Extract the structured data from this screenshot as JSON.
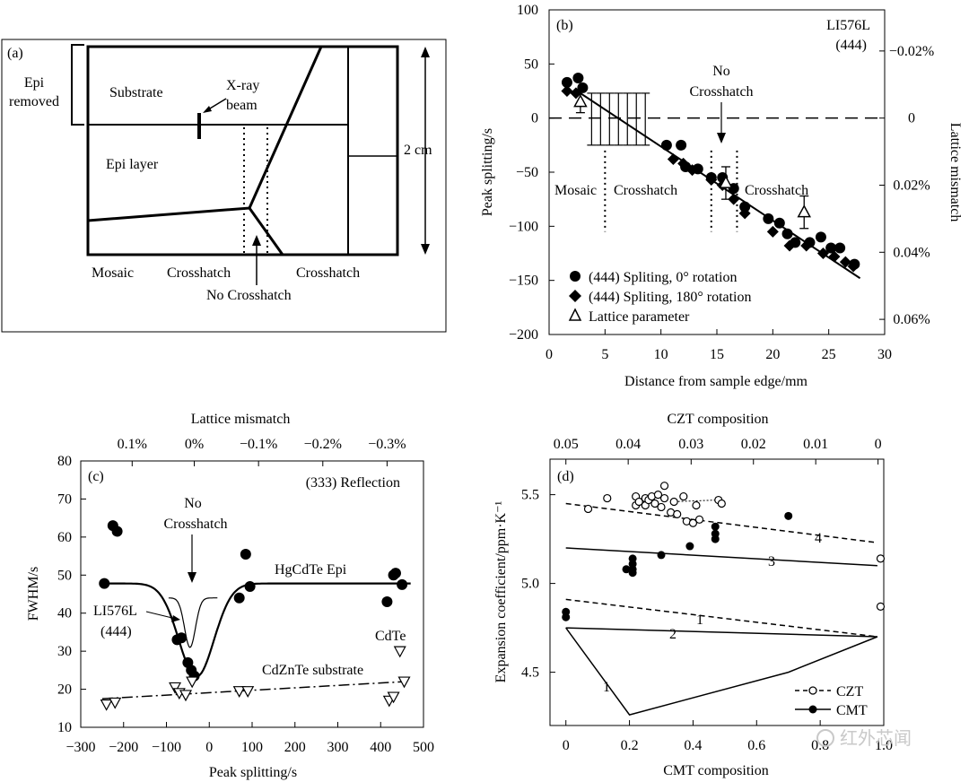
{
  "watermark": "红外芯闻",
  "panels": {
    "a": {
      "label": "(a)",
      "labels": {
        "epi_removed_1": "Epi",
        "epi_removed_2": "removed",
        "substrate": "Substrate",
        "beam_1": "X-ray",
        "beam_2": "beam",
        "epi_layer": "Epi layer",
        "size": "2 cm",
        "mosaic": "Mosaic",
        "crosshatch_left": "Crosshatch",
        "crosshatch_right": "Crosshatch",
        "no_crosshatch": "No Crosshatch"
      }
    }
  },
  "chart_data": [
    {
      "id": "b",
      "type": "scatter",
      "panel_label": "(b)",
      "sample": "LI576L",
      "reflection": "(444)",
      "xlabel": "Distance from sample edge/mm",
      "ylabel": "Peak splitting/s",
      "y2label": "Lattice mismatch",
      "xlim": [
        0,
        30
      ],
      "ylim": [
        -200,
        100
      ],
      "xticks": [
        "0",
        "5",
        "10",
        "15",
        "20",
        "25",
        "30"
      ],
      "yticks": [
        "100",
        "50",
        "0",
        "−50",
        "−100",
        "−150",
        "−200"
      ],
      "y2ticks": [
        {
          "label": "−0.02%",
          "y": 62
        },
        {
          "label": "0",
          "y": 0
        },
        {
          "label": "0.02%",
          "y": -62
        },
        {
          "label": "0.04%",
          "y": -124
        },
        {
          "label": "0.06%",
          "y": -186
        }
      ],
      "annotations": {
        "mosaic": "Mosaic",
        "crosshatch_1": "Crosshatch",
        "crosshatch_2": "Crosshatch",
        "no_1": "No",
        "no_2": "Crosshatch"
      },
      "legend_position": "bottom-left",
      "series": [
        {
          "name": "(444) Spliting, 0° rotation",
          "marker": "circle",
          "x": [
            1.6,
            2.6,
            3.0,
            10.5,
            11.8,
            12.2,
            13.3,
            14.5,
            15.5,
            16.5,
            17.5,
            19.6,
            20.6,
            21.3,
            22.0,
            23.3,
            24.3,
            25.2,
            26.0,
            27.3
          ],
          "y": [
            33,
            37,
            28,
            -25,
            -25,
            -45,
            -47,
            -55,
            -55,
            -65,
            -82,
            -93,
            -97,
            -107,
            -115,
            -115,
            -110,
            -120,
            -120,
            -135
          ]
        },
        {
          "name": "(444) Spliting, 180° rotation",
          "marker": "diamond",
          "x": [
            1.6,
            2.4,
            11.1,
            12.0,
            12.8,
            14.5,
            15.5,
            16.5,
            17.5,
            20.0,
            21.5,
            23.0,
            24.5,
            25.5,
            26.5,
            27.2
          ],
          "y": [
            25,
            23,
            -38,
            -42,
            -48,
            -57,
            -62,
            -75,
            -88,
            -105,
            -118,
            -118,
            -125,
            -128,
            -133,
            -137
          ]
        },
        {
          "name": "Lattice parameter",
          "marker": "triangle-open",
          "x": [
            2.8,
            15.8,
            22.8
          ],
          "y": [
            15,
            -60,
            -87
          ],
          "err": [
            10,
            15,
            15
          ]
        }
      ],
      "reference_line": {
        "y": 0,
        "style": "dashed"
      },
      "fit_line": {
        "x": [
          2.5,
          27.8
        ],
        "y": [
          25,
          -148
        ]
      },
      "range_bars": {
        "x": [
          3.8,
          4.6,
          5.4,
          6.2,
          7.0,
          7.8,
          8.6
        ],
        "y_low": -25,
        "y_high": 23
      },
      "boundaries": [
        {
          "x": 5.0,
          "y_low": -105,
          "y_high": -30
        },
        {
          "x": 14.5,
          "y_low": -105,
          "y_high": -30
        },
        {
          "x": 16.8,
          "y_low": -105,
          "y_high": -30
        }
      ]
    },
    {
      "id": "c",
      "type": "scatter",
      "panel_label": "(c)",
      "reflection": "(333) Reflection",
      "xlabel": "Peak splitting/s",
      "ylabel": "FWHM/s",
      "x2label": "Lattice mismatch",
      "xlim": [
        -300,
        500
      ],
      "ylim": [
        10,
        80
      ],
      "xticks": [
        "−300",
        "−200",
        "−100",
        "0",
        "100",
        "200",
        "300",
        "400",
        "500"
      ],
      "yticks": [
        "80",
        "70",
        "60",
        "50",
        "40",
        "30",
        "20",
        "10"
      ],
      "x2ticks": [
        {
          "label": "0.1%",
          "x": -180
        },
        {
          "label": "0%",
          "x": -35
        },
        {
          "label": "−0.1%",
          "x": 115
        },
        {
          "label": "−0.2%",
          "x": 265
        },
        {
          "label": "−0.3%",
          "x": 415
        }
      ],
      "annotations": {
        "no_1": "No",
        "no_2": "Crosshatch",
        "epi": "HgCdTe Epi",
        "sample_1": "LI576L",
        "sample_2": "(444)",
        "substrate": "CdZnTe substrate",
        "cdte": "CdTe"
      },
      "series": [
        {
          "name": "HgCdTe Epi",
          "marker": "circle",
          "x": [
            -245,
            -225,
            -215,
            -75,
            -65,
            -50,
            -42,
            -35,
            70,
            85,
            95,
            415,
            430,
            435,
            450
          ],
          "y": [
            47.8,
            63,
            61.5,
            33,
            33.5,
            27,
            25,
            23.5,
            44,
            55.5,
            47,
            43,
            50,
            50.5,
            47.5
          ]
        },
        {
          "name": "CdZnTe substrate",
          "marker": "triangle-down-open",
          "x": [
            -240,
            -220,
            -80,
            -70,
            -55,
            -40,
            70,
            90,
            420,
            430,
            445,
            455
          ],
          "y": [
            16,
            16.5,
            20.5,
            19,
            18.5,
            22,
            19.5,
            19.5,
            17,
            18,
            30,
            22
          ]
        }
      ],
      "epi_baseline": 47.8,
      "substrate_line": {
        "x": [
          -250,
          455
        ],
        "y": [
          17.5,
          22
        ]
      }
    },
    {
      "id": "d",
      "type": "scatter",
      "panel_label": "(d)",
      "xlabel": "CMT composition",
      "ylabel": "Expansion coefficient/ppm·K⁻¹",
      "x2label": "CZT composition",
      "xlim": [
        -0.05,
        1.0
      ],
      "ylim": [
        4.2,
        5.7
      ],
      "xticks": [
        "0",
        "0.2",
        "0.4",
        "0.6",
        "0.8",
        "1.0"
      ],
      "yticks": [
        "5.5",
        "5.0",
        "4.5"
      ],
      "x2ticks": [
        "0.05",
        "0.04",
        "0.03",
        "0.02",
        "0.01",
        "0"
      ],
      "x2tick_cmt": [
        0.0,
        0.196,
        0.394,
        0.59,
        0.786,
        0.982
      ],
      "legend_position": "bottom-right",
      "line_labels": {
        "l1a": "1",
        "l1b": "1",
        "l2": "2",
        "l3": "3",
        "l4": "4"
      },
      "series": [
        {
          "name": "CZT",
          "marker": "circle-open",
          "x": [
            0.07,
            0.13,
            0.22,
            0.22,
            0.23,
            0.25,
            0.25,
            0.26,
            0.27,
            0.28,
            0.29,
            0.3,
            0.31,
            0.31,
            0.33,
            0.34,
            0.35,
            0.37,
            0.38,
            0.4,
            0.41,
            0.42,
            0.48,
            0.49,
            0.99,
            0.99
          ],
          "y": [
            5.42,
            5.48,
            5.49,
            5.44,
            5.46,
            5.48,
            5.44,
            5.47,
            5.49,
            5.45,
            5.5,
            5.43,
            5.55,
            5.48,
            5.4,
            5.46,
            5.39,
            5.49,
            5.35,
            5.34,
            5.44,
            5.36,
            5.47,
            5.45,
            5.14,
            4.87
          ]
        },
        {
          "name": "CMT",
          "marker": "circle",
          "x": [
            0.0,
            0.0,
            0.19,
            0.21,
            0.21,
            0.21,
            0.21,
            0.3,
            0.39,
            0.47,
            0.47,
            0.47,
            0.7
          ],
          "y": [
            4.84,
            4.81,
            5.08,
            5.14,
            5.11,
            5.08,
            5.06,
            5.16,
            5.21,
            5.32,
            5.28,
            5.25,
            5.38
          ]
        }
      ],
      "lines": [
        {
          "id": "4",
          "style": "dashed",
          "x": [
            0.0,
            0.98
          ],
          "y": [
            5.45,
            5.23
          ]
        },
        {
          "id": "3",
          "style": "solid",
          "x": [
            0.0,
            0.98
          ],
          "y": [
            5.2,
            5.1
          ]
        },
        {
          "id": "1",
          "style": "dashed",
          "x": [
            0.0,
            0.98
          ],
          "y": [
            4.91,
            4.7
          ]
        },
        {
          "id": "2",
          "style": "solid",
          "x": [
            0.0,
            0.98
          ],
          "y": [
            4.75,
            4.7
          ]
        },
        {
          "id": "1b",
          "style": "solid",
          "x": [
            0.0,
            0.2,
            0.7,
            0.98
          ],
          "y": [
            4.75,
            4.26,
            4.5,
            4.7
          ]
        }
      ]
    }
  ]
}
